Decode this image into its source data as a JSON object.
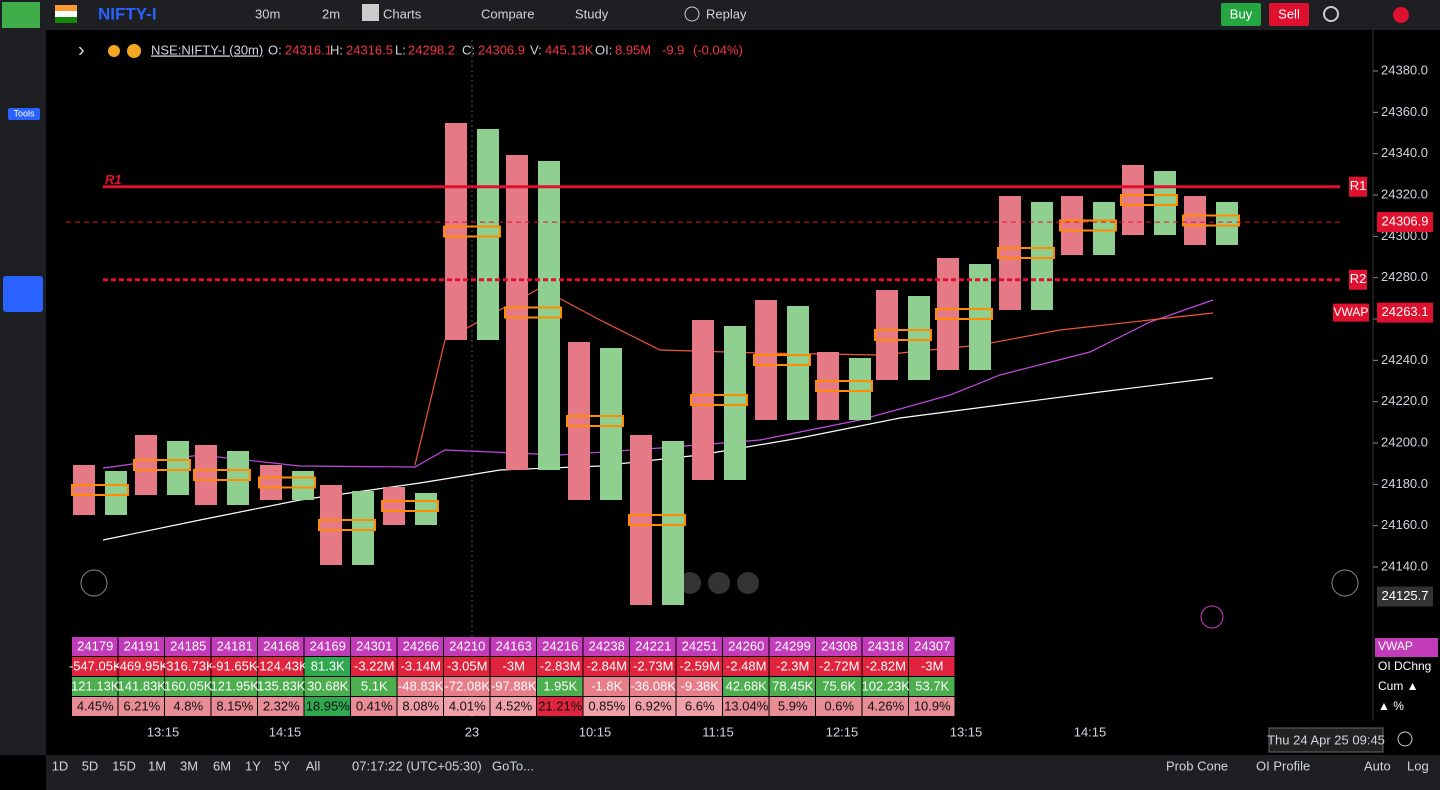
{
  "toolbar": {
    "symbol": "NIFTY-I",
    "interval": "30m",
    "step": "2m",
    "charts": "Charts",
    "compare": "Compare",
    "study": "Study",
    "replay": "Replay",
    "buy": "Buy",
    "sell": "Sell",
    "tools": "Tools"
  },
  "legend": {
    "ticker": "NSE:NIFTY-I (30m)",
    "o_label": "O:",
    "o": "24316.1",
    "h_label": "H:",
    "h": "24316.5",
    "l_label": "L:",
    "l": "24298.2",
    "c_label": "C:",
    "c": "24306.9",
    "v_label": "V:",
    "v": "445.13K",
    "oi_label": "OI:",
    "oi": "8.95M",
    "change": "-9.9",
    "pct": "(-0.04%)"
  },
  "price_axis": {
    "ylim": [
      24127,
      24390
    ],
    "yticks": [
      {
        "value": 24380,
        "label": "24380.0"
      },
      {
        "value": 24360,
        "label": "24360.0"
      },
      {
        "value": 24340,
        "label": "24340.0"
      },
      {
        "value": 24320,
        "label": "24320.0"
      },
      {
        "value": 24300,
        "label": "24300.0"
      },
      {
        "value": 24280,
        "label": "24280.0"
      },
      {
        "value": 24260,
        "label": "24260.0"
      },
      {
        "value": 24240,
        "label": "24240.0"
      },
      {
        "value": 24220,
        "label": "24220.0"
      },
      {
        "value": 24200,
        "label": "24200.0"
      },
      {
        "value": 24180,
        "label": "24180.0"
      },
      {
        "value": 24160,
        "label": "24160.0"
      },
      {
        "value": 24140,
        "label": "24140.0"
      }
    ],
    "last": {
      "value": 24306.9,
      "label": "24306.9"
    },
    "vwap": {
      "value": 24263.1,
      "label": "24263.1"
    },
    "cursor": {
      "value": 24125.7,
      "label": "24125.7"
    },
    "r1": {
      "value": 24324,
      "label": "R1"
    },
    "r2": {
      "value": 24279,
      "label": "R2"
    },
    "vwap_tag": "VWAP"
  },
  "time_axis": {
    "labels": [
      "13:15",
      "14:15",
      "23",
      "10:15",
      "11:15",
      "12:15",
      "13:15",
      "14:15"
    ],
    "cursor": "Thu 24 Apr 25 09:45"
  },
  "table": {
    "row_labels": [
      "VWAP",
      "OI DChng",
      "Cum ▲",
      "▲ %"
    ],
    "rows": [
      [
        "24179",
        "24191",
        "24185",
        "24181",
        "24168",
        "24169",
        "24301",
        "24266",
        "24210",
        "24163",
        "24216",
        "24238",
        "24221",
        "24251",
        "24260",
        "24299",
        "24308",
        "24318",
        "24307"
      ],
      [
        "-547.05K",
        "-469.95K",
        "-316.73K",
        "-91.65K",
        "-124.43K",
        "81.3K",
        "-3.22M",
        "-3.14M",
        "-3.05M",
        "-3M",
        "-2.83M",
        "-2.84M",
        "-2.73M",
        "-2.59M",
        "-2.48M",
        "-2.3M",
        "-2.72M",
        "-2.82M",
        "-3M"
      ],
      [
        "121.13K",
        "141.83K",
        "160.05K",
        "121.95K",
        "135.83K",
        "30.68K",
        "5.1K",
        "-48.83K",
        "-72.08K",
        "-97.88K",
        "1.95K",
        "-1.8K",
        "-36.08K",
        "-9.38K",
        "42.68K",
        "78.45K",
        "75.6K",
        "102.23K",
        "53.7K"
      ],
      [
        "4.45%",
        "6.21%",
        "4.8%",
        "8.15%",
        "2.32%",
        "18.95%",
        "0.41%",
        "8.08%",
        "4.01%",
        "4.52%",
        "21.21%",
        "0.85%",
        "6.92%",
        "6.6%",
        "13.04%",
        "5.9%",
        "0.6%",
        "4.26%",
        "10.9%"
      ]
    ]
  },
  "bottom": {
    "ranges": [
      "1D",
      "5D",
      "15D",
      "1M",
      "3M",
      "6M",
      "1Y",
      "5Y",
      "All"
    ],
    "clock": "07:17:22 (UTC+05:30)",
    "goto": "GoTo...",
    "prob_cone": "Prob Cone",
    "oi_profile": "OI Profile",
    "auto": "Auto",
    "log": "Log"
  }
}
